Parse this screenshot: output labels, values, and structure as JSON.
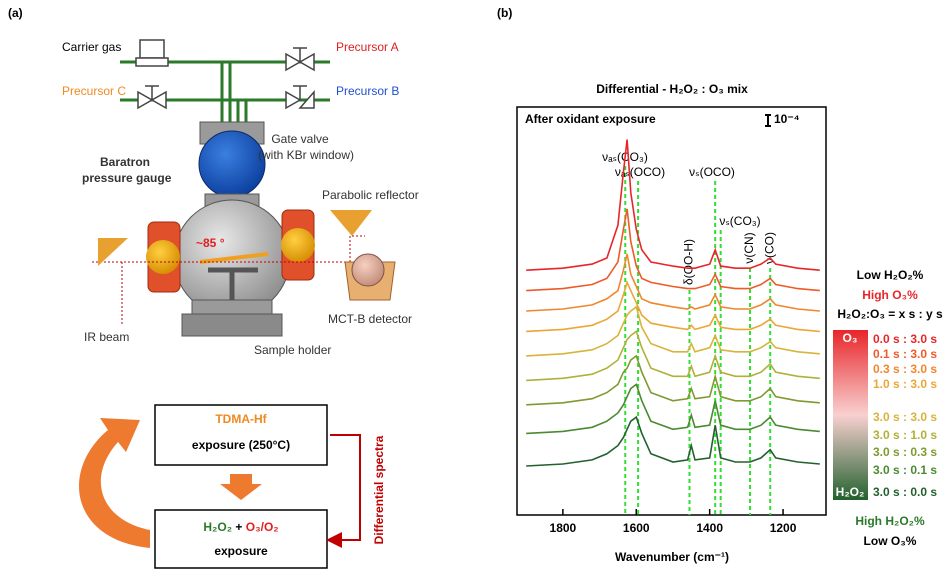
{
  "panel_a": {
    "label": "(a)",
    "carrier_gas": "Carrier gas",
    "precursor_a": "Precursor A",
    "precursor_b": "Precursor B",
    "precursor_c": "Precursor C",
    "baratron": [
      "Baratron",
      "pressure gauge"
    ],
    "gate_valve": [
      "Gate valve",
      "(with KBr window)"
    ],
    "parabolic_reflector": "Parabolic reflector",
    "angle": "~85 °",
    "ir_beam": "IR beam",
    "detector": "MCT-B detector",
    "sample_holder": "Sample holder",
    "flow": {
      "step1": [
        "TDMA-Hf",
        "exposure (250°C)"
      ],
      "step2": [
        "H₂O₂",
        " + ",
        "O₃/O₂"
      ],
      "step2_line2": "exposure",
      "side_label": "Differential spectra"
    }
  },
  "chart_data": {
    "type": "line",
    "panel_label": "(b)",
    "title": "Differential - H₂O₂ : O₃ mix",
    "subtitle": "After oxidant exposure",
    "scale_label": "10⁻⁴",
    "x_label": "Wavenumber (cm⁻¹)",
    "xlim": [
      1925,
      1083
    ],
    "xticks": [
      1800,
      1600,
      1400,
      1200
    ],
    "ylim": [
      0,
      100
    ],
    "x": [
      1900,
      1800,
      1720,
      1680,
      1650,
      1635,
      1625,
      1615,
      1600,
      1585,
      1560,
      1500,
      1460,
      1450,
      1440,
      1400,
      1385,
      1370,
      1330,
      1290,
      1260,
      1235,
      1220,
      1160,
      1100
    ],
    "series": [
      {
        "name": "0.0 s : 3.0 s",
        "color": "#e8262a",
        "values": [
          60,
          60.5,
          61.5,
          63,
          71,
          84,
          92,
          79,
          70,
          65,
          62,
          61,
          60.5,
          60.5,
          60.5,
          61.5,
          65,
          61,
          60.5,
          60.5,
          61.5,
          63,
          61.5,
          60.5,
          60
        ]
      },
      {
        "name": "0.1 s : 3.0 s",
        "color": "#ee5a28",
        "values": [
          55,
          55.5,
          56.5,
          58,
          62,
          70,
          75,
          67,
          61,
          58,
          57,
          56,
          55.5,
          55.5,
          55.5,
          56.5,
          59,
          56,
          55.5,
          55.5,
          56.5,
          58,
          56.5,
          55.5,
          55
        ]
      },
      {
        "name": "0.3 s : 3.0 s",
        "color": "#f0862e",
        "values": [
          50,
          50.5,
          51.5,
          53,
          55,
          60,
          64,
          59,
          56,
          53,
          52,
          51,
          50.5,
          51,
          50.5,
          51.5,
          54,
          51,
          50.5,
          50.5,
          51.5,
          53,
          51.5,
          50.5,
          50
        ]
      },
      {
        "name": "1.0 s : 3.0 s",
        "color": "#eba735",
        "values": [
          45,
          45.5,
          46.5,
          48,
          50,
          54,
          57,
          55,
          52,
          49,
          47,
          46,
          45.5,
          46.5,
          45.5,
          46.5,
          49,
          46,
          45.5,
          45.5,
          46.5,
          48,
          46.5,
          45.5,
          45
        ]
      },
      {
        "name": "3.0 s : 3.0 s",
        "color": "#d8b43a",
        "values": [
          39,
          39.5,
          40.5,
          42,
          44,
          47,
          49,
          50,
          51,
          46,
          42,
          40,
          40,
          42,
          40,
          41,
          44,
          40.5,
          40,
          40,
          41,
          42.5,
          41,
          40,
          39.5
        ]
      },
      {
        "name": "3.0 s : 1.0 s",
        "color": "#b0b03a",
        "values": [
          33,
          33.5,
          34.5,
          36,
          38,
          41,
          43,
          44,
          45,
          41,
          36,
          34,
          34,
          36.5,
          34,
          35,
          39,
          35,
          34,
          34,
          35,
          37,
          35,
          34,
          33.5
        ]
      },
      {
        "name": "3.0 s : 0.3 s",
        "color": "#7f9a30",
        "values": [
          27,
          27.5,
          28.5,
          30,
          32,
          35,
          36,
          38,
          39,
          35,
          30,
          28,
          28.5,
          31,
          28.5,
          29,
          34,
          29,
          28,
          28,
          29,
          31,
          29,
          28,
          27.5
        ]
      },
      {
        "name": "3.0 s : 0.1 s",
        "color": "#4b8a32",
        "values": [
          20,
          20.5,
          21.5,
          23,
          25,
          27,
          29,
          31,
          32,
          28,
          23,
          21,
          21.5,
          24.5,
          21.5,
          22,
          28,
          22,
          21,
          21,
          22,
          24,
          22,
          21,
          20.5
        ]
      },
      {
        "name": "3.0 s : 0.0 s",
        "color": "#22612e",
        "values": [
          12,
          12.5,
          13.5,
          15,
          17,
          19,
          21,
          23,
          24,
          20,
          15,
          13,
          13.5,
          17,
          13.5,
          14,
          22,
          14,
          13,
          13,
          14,
          16,
          14,
          13,
          12.5
        ]
      }
    ],
    "annotations": [
      {
        "x": 1630,
        "label": "νₐₛ(CO₃)"
      },
      {
        "x": 1595,
        "label": "νₐₛ(OCO)"
      },
      {
        "x": 1455,
        "label": "δ(OO-H)"
      },
      {
        "x": 1385,
        "label": "νₛ(OCO)"
      },
      {
        "x": 1370,
        "label": "νₛ(CO₃)"
      },
      {
        "x": 1290,
        "label": "ν(CN)"
      },
      {
        "x": 1235,
        "label": "ν(CO)"
      }
    ],
    "annotation_color": "#33dd33",
    "legend": {
      "top": [
        "Low H₂O₂%",
        "High O₃%",
        "H₂O₂:O₃ = x s : y s"
      ],
      "triangle_top": "O₃",
      "triangle_bottom": "H₂O₂",
      "bottom": [
        "High H₂O₂%",
        "Low O₃%"
      ]
    }
  }
}
